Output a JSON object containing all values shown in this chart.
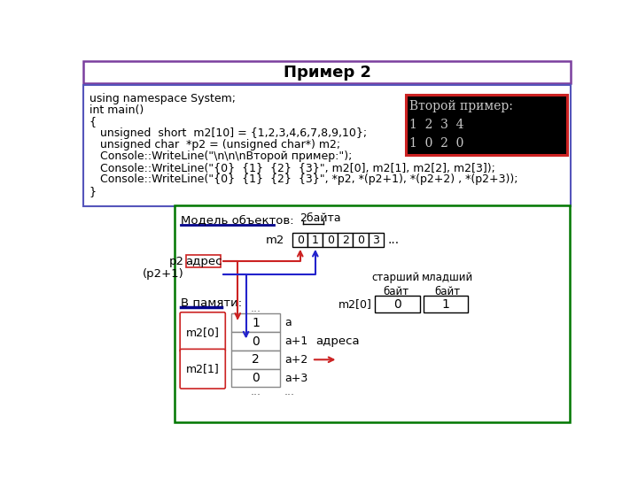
{
  "title": "Пример 2",
  "title_border_color": "#7B3F9E",
  "code_lines": [
    "using namespace System;",
    "int main()",
    "{",
    "   unsigned  short  m2[10] = {1,2,3,4,6,7,8,9,10};",
    "   unsigned char  *p2 = (unsigned char*) m2;",
    "   Console::WriteLine(\"\\n\\n\\nВторой пример:\");",
    "   Console::WriteLine(\"{0}  {1}  {2}  {3}\", m2[0], m2[1], m2[2], m2[3]);",
    "   Console::WriteLine(\"{0}  {1}  {2}  {3}\", *p2, *(p2+1), *(p2+2) , *(p2+3));",
    "}"
  ],
  "code_border_color": "#5555bb",
  "console_text": [
    "Второй пример:",
    "1  2  3  4",
    "1  0  2  0"
  ],
  "console_bg": "#000000",
  "console_fg": "#c8c8c8",
  "console_border": "#cc2222",
  "diagram_border": "#007700",
  "model_label": "Модель объектов:",
  "bytes_label": "2байта",
  "m2_label": "m2",
  "m2_cells": [
    "0",
    "1",
    "0",
    "2",
    "0",
    "3"
  ],
  "m2_dots": "...",
  "p2_label": "p2",
  "p2_box": "адрес",
  "p2plus1_label": "(p2+1)",
  "memory_label": "В памяти:",
  "m2_0_label": "m2[0]",
  "m2_1_label": "m2[1]",
  "mem_vals": [
    "1",
    "0",
    "2",
    "0"
  ],
  "mem_addrs": [
    "a",
    "a+1",
    "a+2",
    "a+3"
  ],
  "mem_dots": "...",
  "addr_label": "адреса",
  "senior_label": "старший\nбайт",
  "junior_label": "младший\nбайт",
  "m2_0_box_label": "m2[0]",
  "m2_0_senior": "0",
  "m2_0_junior": "1",
  "red": "#cc2222",
  "blue": "#2222cc",
  "darkblue": "#00008B"
}
